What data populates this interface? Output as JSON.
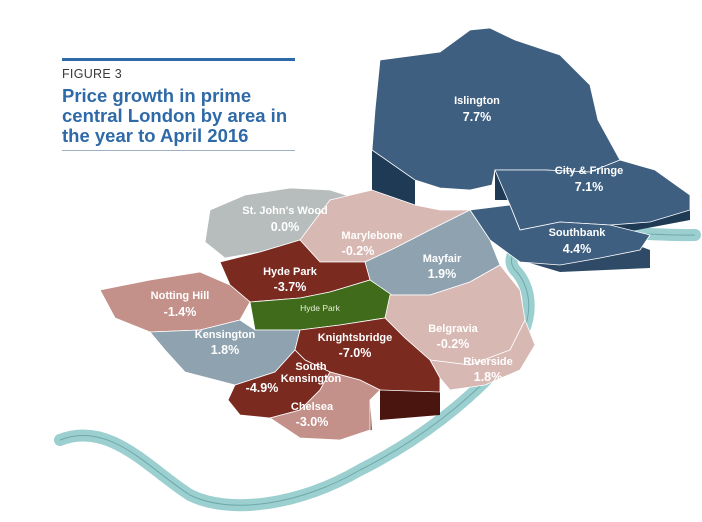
{
  "figure": {
    "label": "FIGURE 3",
    "title": "Price growth in prime\ncentral London by area in\nthe year to April 2016"
  },
  "colors": {
    "strong_positive": "#3f5f80",
    "positive": "#8fa2b0",
    "neutral": "#b7bdbc",
    "slight_negative": "#d8b8b3",
    "negative": "#c4918a",
    "strong_negative": "#7b2a20",
    "park": "#3f6b1a",
    "river": "#9ccfcf"
  },
  "park": {
    "name": "Hyde Park"
  },
  "areas": [
    {
      "name": "Islington",
      "value": "7.7%"
    },
    {
      "name": "City & Fringe",
      "value": "7.1%"
    },
    {
      "name": "Southbank",
      "value": "4.4%"
    },
    {
      "name": "St. John's Wood",
      "value": "0.0%"
    },
    {
      "name": "Marylebone",
      "value": "-0.2%"
    },
    {
      "name": "Mayfair",
      "value": "1.9%"
    },
    {
      "name": "Hyde Park",
      "value": "-3.7%"
    },
    {
      "name": "Notting Hill",
      "value": "-1.4%"
    },
    {
      "name": "Kensington",
      "value": "1.8%"
    },
    {
      "name": "Knightsbridge",
      "value": "-7.0%"
    },
    {
      "name": "Belgravia",
      "value": "-0.2%"
    },
    {
      "name": "Riverside",
      "value": "1.8%"
    },
    {
      "name": "South\nKensington",
      "value": "-4.9%"
    },
    {
      "name": "Chelsea",
      "value": "-3.0%"
    }
  ]
}
